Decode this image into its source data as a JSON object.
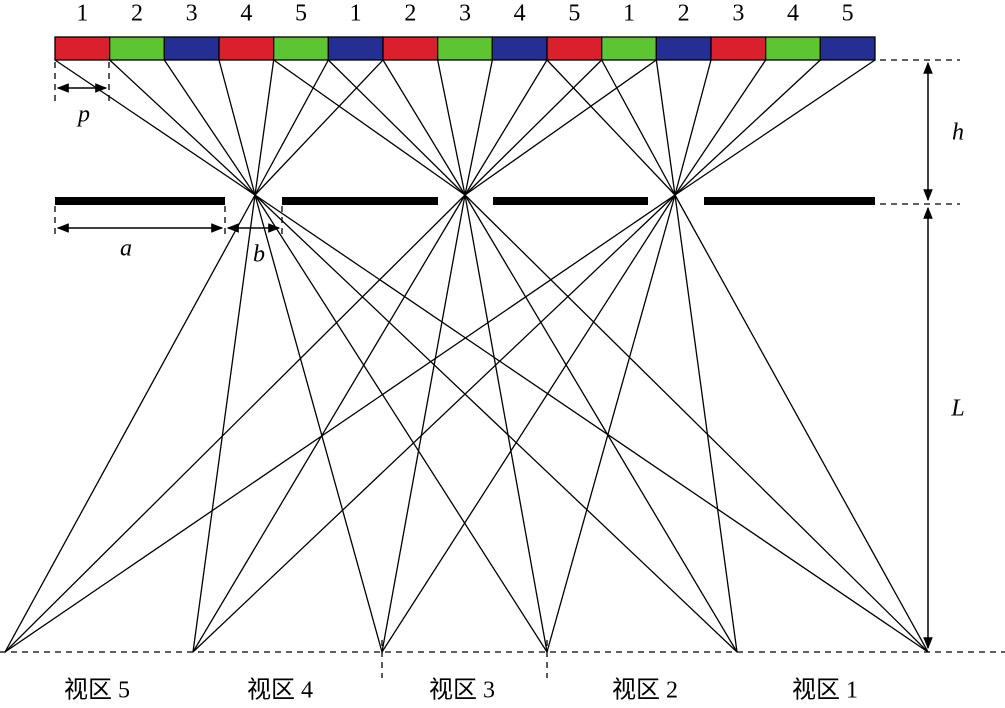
{
  "pixel_labels": [
    "1",
    "2",
    "3",
    "4",
    "5",
    "1",
    "2",
    "3",
    "4",
    "5",
    "1",
    "2",
    "3",
    "4",
    "5"
  ],
  "dimensions": {
    "pixel_pitch": "p",
    "gap": "h",
    "barrier_width": "a",
    "slit_width": "b",
    "viewing_distance": "L"
  },
  "view_zones": [
    "视区 5",
    "视区 4",
    "视区 3",
    "视区 2",
    "视区 1"
  ]
}
